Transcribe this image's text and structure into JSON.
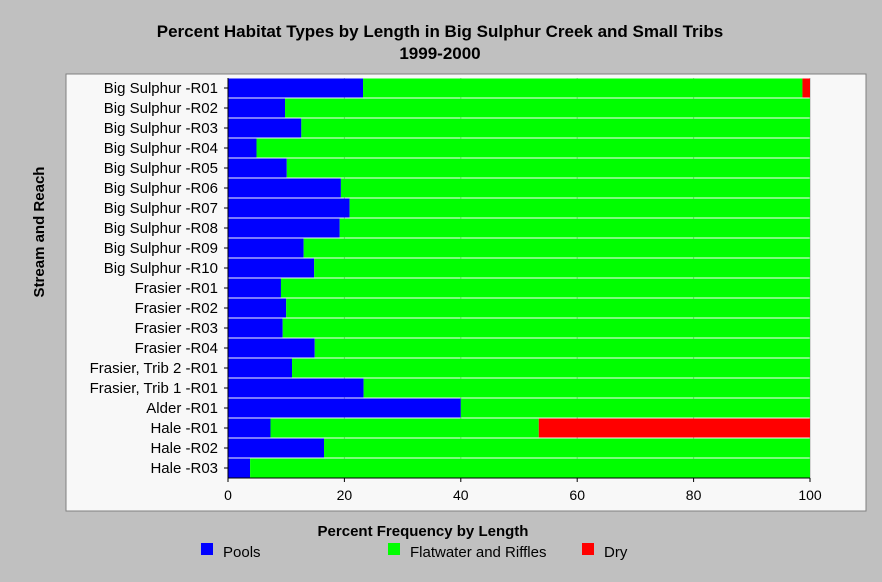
{
  "chart_data": {
    "type": "bar",
    "orientation": "horizontal",
    "stacked": true,
    "title": "Percent Habitat Types by Length in Big Sulphur Creek and Small Tribs",
    "subtitle": "1999-2000",
    "xlabel": "Percent Frequency by Length",
    "ylabel": "Stream and Reach",
    "xlim": [
      0,
      100
    ],
    "xticks": [
      0,
      20,
      40,
      60,
      80,
      100
    ],
    "grid": true,
    "legend_position": "bottom",
    "categories": [
      "Big Sulphur -R01",
      "Big Sulphur -R02",
      "Big Sulphur -R03",
      "Big Sulphur -R04",
      "Big Sulphur -R05",
      "Big Sulphur -R06",
      "Big Sulphur -R07",
      "Big Sulphur -R08",
      "Big Sulphur -R09",
      "Big Sulphur -R10",
      "Frasier -R01",
      "Frasier -R02",
      "Frasier -R03",
      "Frasier -R04",
      "Frasier, Trib 2 -R01",
      "Frasier, Trib 1 -R01",
      "Alder -R01",
      "Hale -R01",
      "Hale -R02",
      "Hale -R03"
    ],
    "series": [
      {
        "name": "Pools",
        "color": "#0000ff",
        "values": [
          23.2,
          9.8,
          12.6,
          4.9,
          10.1,
          19.4,
          20.9,
          19.2,
          13.0,
          14.8,
          9.1,
          10.0,
          9.4,
          14.9,
          11.0,
          23.3,
          40.0,
          7.3,
          16.5,
          3.8
        ]
      },
      {
        "name": "Flatwater and Riffles",
        "color": "#00ff00",
        "values": [
          75.5,
          90.2,
          87.4,
          95.1,
          89.9,
          80.6,
          79.1,
          80.8,
          87.0,
          85.2,
          90.9,
          90.0,
          90.6,
          85.1,
          89.0,
          76.7,
          60.0,
          46.1,
          83.5,
          96.2
        ]
      },
      {
        "name": "Dry",
        "color": "#ff0000",
        "values": [
          1.3,
          0,
          0,
          0,
          0,
          0,
          0,
          0,
          0,
          0,
          0,
          0,
          0,
          0,
          0,
          0,
          0,
          46.6,
          0,
          0
        ]
      }
    ]
  }
}
